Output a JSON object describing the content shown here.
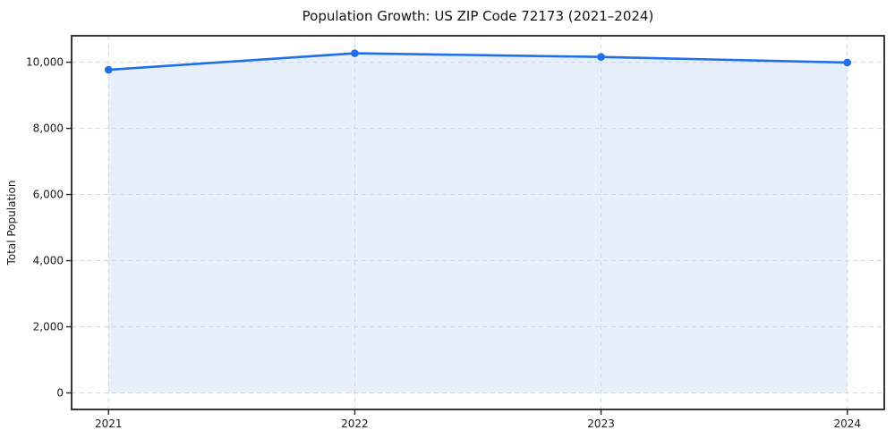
{
  "chart_data": {
    "type": "line",
    "title": "Population Growth: US ZIP Code 72173 (2021–2024)",
    "xlabel": "",
    "ylabel": "Total Population",
    "x": [
      2021,
      2022,
      2023,
      2024
    ],
    "x_tick_labels": [
      "2021",
      "2022",
      "2023",
      "2024"
    ],
    "series": [
      {
        "name": "Total Population",
        "values": [
          9770,
          10270,
          10160,
          9990
        ]
      }
    ],
    "y_ticks": [
      0,
      2000,
      4000,
      6000,
      8000,
      10000
    ],
    "y_tick_labels": [
      "0",
      "2,000",
      "4,000",
      "6,000",
      "8,000",
      "10,000"
    ],
    "xlim": [
      2020.85,
      2024.15
    ],
    "ylim": [
      -500,
      10800
    ],
    "grid": true,
    "grid_style": "dashed",
    "legend": "none",
    "marker": "circle",
    "area_fill": true,
    "colors": {
      "line": "#1f6feb",
      "marker": "#1f6feb",
      "fill": "#e8effc",
      "grid": "#d4d4d4",
      "spine": "#222222",
      "text": "#1a1a1a",
      "background": "#ffffff"
    }
  }
}
